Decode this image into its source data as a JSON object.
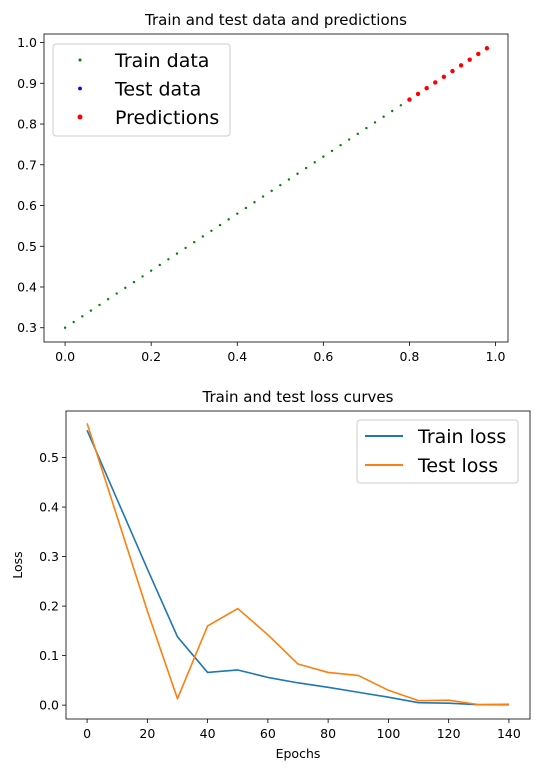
{
  "chart_data": [
    {
      "type": "scatter",
      "title": "Train and test data and predictions",
      "xlabel": "",
      "ylabel": "",
      "xlim": [
        -0.049,
        1.029
      ],
      "ylim": [
        0.265,
        1.021
      ],
      "xticks": [
        0.0,
        0.2,
        0.4,
        0.6,
        0.8,
        1.0
      ],
      "xtick_labels": [
        "0.0",
        "0.2",
        "0.4",
        "0.6",
        "0.8",
        "1.0"
      ],
      "yticks": [
        0.3,
        0.4,
        0.5,
        0.6,
        0.7,
        0.8,
        0.9,
        1.0
      ],
      "ytick_labels": [
        "0.3",
        "0.4",
        "0.5",
        "0.6",
        "0.7",
        "0.8",
        "0.9",
        "1.0"
      ],
      "legend": {
        "placement": "top-left",
        "entries": [
          "Train data",
          "Test data",
          "Predictions"
        ]
      },
      "series": [
        {
          "name": "Train data",
          "color": "#008000",
          "marker_size": 1.2,
          "x": [
            0.0,
            0.02,
            0.04,
            0.06,
            0.08,
            0.1,
            0.12,
            0.14,
            0.16,
            0.18,
            0.2,
            0.22,
            0.24,
            0.26,
            0.28,
            0.3,
            0.32,
            0.34,
            0.36,
            0.38,
            0.4,
            0.42,
            0.44,
            0.46,
            0.48,
            0.5,
            0.52,
            0.54,
            0.56,
            0.58,
            0.6,
            0.62,
            0.64,
            0.66,
            0.68,
            0.7,
            0.72,
            0.74,
            0.76,
            0.78
          ],
          "y": [
            0.3,
            0.314,
            0.328,
            0.342,
            0.356,
            0.37,
            0.384,
            0.398,
            0.412,
            0.426,
            0.44,
            0.454,
            0.468,
            0.482,
            0.496,
            0.51,
            0.524,
            0.538,
            0.552,
            0.566,
            0.58,
            0.594,
            0.608,
            0.622,
            0.636,
            0.65,
            0.664,
            0.678,
            0.692,
            0.706,
            0.72,
            0.734,
            0.748,
            0.762,
            0.776,
            0.79,
            0.804,
            0.818,
            0.832,
            0.846
          ]
        },
        {
          "name": "Test data",
          "color": "#0000ff",
          "marker_size": 1.6,
          "x": [
            0.8,
            0.82,
            0.84,
            0.86,
            0.88,
            0.9,
            0.92,
            0.94,
            0.96,
            0.98
          ],
          "y": [
            0.86,
            0.874,
            0.888,
            0.902,
            0.916,
            0.93,
            0.944,
            0.958,
            0.972,
            0.986
          ]
        },
        {
          "name": "Predictions",
          "color": "#ff0000",
          "marker_size": 2.2,
          "x": [
            0.8,
            0.82,
            0.84,
            0.86,
            0.88,
            0.9,
            0.92,
            0.94,
            0.96,
            0.98
          ],
          "y": [
            0.86,
            0.874,
            0.888,
            0.902,
            0.916,
            0.93,
            0.944,
            0.958,
            0.972,
            0.986
          ]
        }
      ]
    },
    {
      "type": "line",
      "title": "Train and test loss curves",
      "xlabel": "Epochs",
      "ylabel": "Loss",
      "xlim": [
        -7,
        147
      ],
      "ylim": [
        -0.028,
        0.594
      ],
      "xticks": [
        0,
        20,
        40,
        60,
        80,
        100,
        120,
        140
      ],
      "xtick_labels": [
        "0",
        "20",
        "40",
        "60",
        "80",
        "100",
        "120",
        "140"
      ],
      "yticks": [
        0.0,
        0.1,
        0.2,
        0.3,
        0.4,
        0.5
      ],
      "ytick_labels": [
        "0.0",
        "0.1",
        "0.2",
        "0.3",
        "0.4",
        "0.5"
      ],
      "legend": {
        "placement": "top-right",
        "entries": [
          "Train loss",
          "Test loss"
        ]
      },
      "x": [
        0,
        10,
        20,
        30,
        40,
        50,
        60,
        70,
        80,
        90,
        100,
        110,
        120,
        130,
        140
      ],
      "series": [
        {
          "name": "Train loss",
          "color": "#1f77b4",
          "values": [
            0.555,
            0.415,
            0.275,
            0.138,
            0.066,
            0.071,
            0.056,
            0.045,
            0.036,
            0.026,
            0.016,
            0.005,
            0.004,
            0.001,
            0.001
          ]
        },
        {
          "name": "Test loss",
          "color": "#ff7f0e",
          "values": [
            0.569,
            0.38,
            0.19,
            0.013,
            0.16,
            0.195,
            0.142,
            0.083,
            0.066,
            0.06,
            0.03,
            0.009,
            0.01,
            0.001,
            0.002
          ]
        }
      ]
    }
  ]
}
